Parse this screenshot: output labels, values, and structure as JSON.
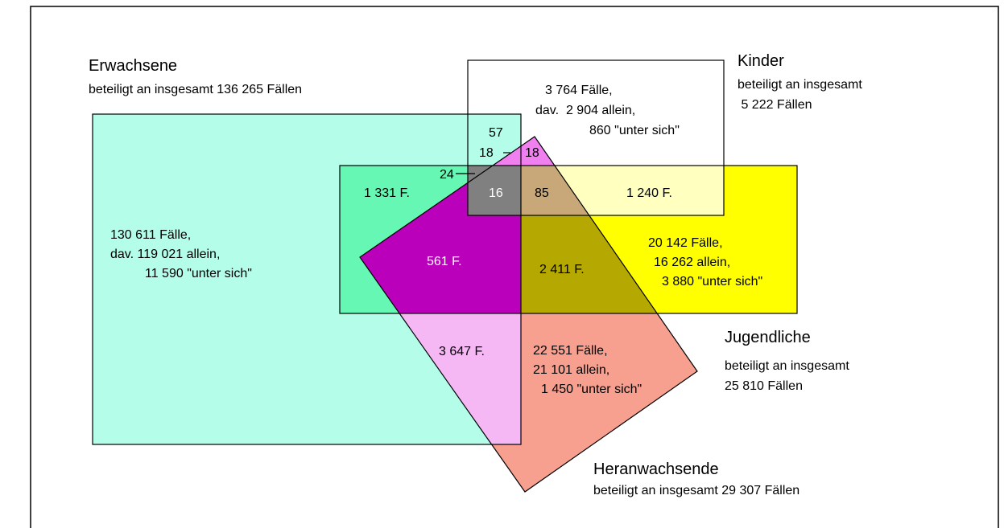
{
  "groups": [
    {
      "title": "Erwachsene",
      "note": [
        "beteiligt an insgesamt 136 265 Fällen"
      ]
    },
    {
      "title": "Kinder",
      "note": [
        "beteiligt an insgesamt",
        " 5 222 Fällen"
      ]
    },
    {
      "title": "Jugendliche",
      "note": [
        "beteiligt an insgesamt",
        "25 810 Fällen"
      ]
    },
    {
      "title": "Heranwachsende",
      "note": [
        "beteiligt an insgesamt 29 307 Fällen"
      ]
    }
  ],
  "regions": [
    {
      "lines": [
        "130 611 Fälle,",
        "dav. 119 021 allein,",
        "11 590 \"unter sich\""
      ]
    },
    {
      "lines": [
        "3 764 Fälle,",
        "dav.  2 904 allein,",
        "860 \"unter sich\""
      ]
    },
    {
      "lines": [
        "20 142 Fälle,",
        "16 262 allein,",
        "3 880 \"unter sich\""
      ]
    },
    {
      "lines": [
        "22 551 Fälle,",
        "21 101 allein,",
        "1 450 \"unter sich\""
      ]
    },
    {
      "lines": [
        "57"
      ]
    },
    {
      "lines": [
        "18"
      ]
    },
    {
      "lines": [
        "18"
      ]
    },
    {
      "lines": [
        "24"
      ]
    },
    {
      "lines": [
        "16"
      ]
    },
    {
      "lines": [
        "85"
      ]
    },
    {
      "lines": [
        "1 331 F."
      ]
    },
    {
      "lines": [
        "1 240 F."
      ]
    },
    {
      "lines": [
        "561 F."
      ]
    },
    {
      "lines": [
        "2 411 F."
      ]
    },
    {
      "lines": [
        "3 647 F."
      ]
    }
  ]
}
